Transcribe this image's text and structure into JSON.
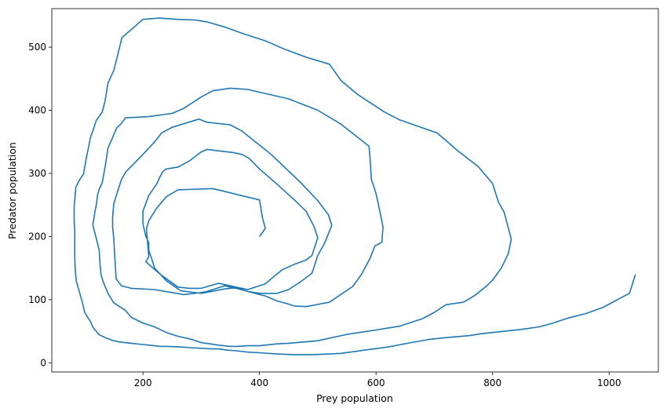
{
  "chart_data": {
    "type": "line",
    "title": "",
    "xlabel": "Prey population",
    "ylabel": "Predator population",
    "xlim": [
      43.6,
      1084.5
    ],
    "ylim": [
      -14.5,
      561.0
    ],
    "x_ticks": [
      200,
      400,
      600,
      800,
      1000
    ],
    "x_tick_labels": [
      "200",
      "400",
      "600",
      "800",
      "1000"
    ],
    "y_ticks": [
      0,
      100,
      200,
      300,
      400,
      500
    ],
    "y_tick_labels": [
      "0",
      "100",
      "200",
      "300",
      "400",
      "500"
    ],
    "grid": false,
    "legend": "none",
    "series": [
      {
        "color": "#1f77b4",
        "points": [
          [
            400,
            200
          ],
          [
            410,
            213
          ],
          [
            405,
            230
          ],
          [
            400,
            258
          ],
          [
            320,
            276
          ],
          [
            260,
            274
          ],
          [
            240,
            263
          ],
          [
            222,
            243
          ],
          [
            210,
            225
          ],
          [
            206,
            212
          ],
          [
            208,
            190
          ],
          [
            210,
            168
          ],
          [
            205,
            160
          ],
          [
            230,
            140
          ],
          [
            260,
            120
          ],
          [
            280,
            118
          ],
          [
            300,
            118
          ],
          [
            330,
            126
          ],
          [
            380,
            116
          ],
          [
            410,
            125
          ],
          [
            420,
            133
          ],
          [
            440,
            148
          ],
          [
            460,
            156
          ],
          [
            480,
            163
          ],
          [
            490,
            170
          ],
          [
            500,
            198
          ],
          [
            494,
            215
          ],
          [
            480,
            240
          ],
          [
            460,
            258
          ],
          [
            430,
            283
          ],
          [
            400,
            307
          ],
          [
            382,
            324
          ],
          [
            370,
            330
          ],
          [
            355,
            333
          ],
          [
            310,
            338
          ],
          [
            300,
            334
          ],
          [
            280,
            320
          ],
          [
            260,
            310
          ],
          [
            240,
            307
          ],
          [
            234,
            303
          ],
          [
            230,
            296
          ],
          [
            224,
            284
          ],
          [
            210,
            265
          ],
          [
            200,
            240
          ],
          [
            200,
            220
          ],
          [
            205,
            200
          ],
          [
            210,
            190
          ],
          [
            210,
            178
          ],
          [
            215,
            165
          ],
          [
            220,
            150
          ],
          [
            240,
            130
          ],
          [
            265,
            114
          ],
          [
            300,
            110
          ],
          [
            340,
            117
          ],
          [
            360,
            119
          ],
          [
            380,
            113
          ],
          [
            400,
            110
          ],
          [
            430,
            110
          ],
          [
            450,
            116
          ],
          [
            470,
            128
          ],
          [
            490,
            142
          ],
          [
            493,
            150
          ],
          [
            500,
            170
          ],
          [
            512,
            190
          ],
          [
            524,
            218
          ],
          [
            518,
            235
          ],
          [
            500,
            257
          ],
          [
            470,
            286
          ],
          [
            420,
            330
          ],
          [
            370,
            367
          ],
          [
            350,
            377
          ],
          [
            310,
            381
          ],
          [
            296,
            386
          ],
          [
            250,
            373
          ],
          [
            232,
            364
          ],
          [
            220,
            350
          ],
          [
            200,
            330
          ],
          [
            184,
            315
          ],
          [
            170,
            302
          ],
          [
            163,
            290
          ],
          [
            155,
            267
          ],
          [
            150,
            252
          ],
          [
            148,
            230
          ],
          [
            148,
            215
          ],
          [
            150,
            196
          ],
          [
            152,
            163
          ],
          [
            154,
            133
          ],
          [
            163,
            122
          ],
          [
            180,
            118
          ],
          [
            220,
            116
          ],
          [
            245,
            112
          ],
          [
            270,
            108
          ],
          [
            298,
            111
          ],
          [
            310,
            113
          ],
          [
            340,
            122
          ],
          [
            360,
            118
          ],
          [
            400,
            108
          ],
          [
            410,
            106
          ],
          [
            430,
            98
          ],
          [
            450,
            93
          ],
          [
            460,
            90
          ],
          [
            480,
            89
          ],
          [
            520,
            96
          ],
          [
            560,
            121
          ],
          [
            575,
            140
          ],
          [
            590,
            166
          ],
          [
            598,
            185
          ],
          [
            610,
            191
          ],
          [
            612,
            215
          ],
          [
            605,
            247
          ],
          [
            600,
            268
          ],
          [
            596,
            280
          ],
          [
            592,
            290
          ],
          [
            590,
            320
          ],
          [
            588,
            343
          ],
          [
            540,
            378
          ],
          [
            500,
            400
          ],
          [
            450,
            418
          ],
          [
            380,
            433
          ],
          [
            350,
            435
          ],
          [
            320,
            431
          ],
          [
            300,
            421
          ],
          [
            270,
            403
          ],
          [
            250,
            395
          ],
          [
            210,
            390
          ],
          [
            170,
            388
          ],
          [
            162,
            378
          ],
          [
            155,
            372
          ],
          [
            140,
            340
          ],
          [
            135,
            310
          ],
          [
            130,
            285
          ],
          [
            125,
            275
          ],
          [
            122,
            265
          ],
          [
            120,
            250
          ],
          [
            118,
            242
          ],
          [
            116,
            230
          ],
          [
            114,
            218
          ],
          [
            120,
            197
          ],
          [
            125,
            178
          ],
          [
            126,
            160
          ],
          [
            128,
            140
          ],
          [
            132,
            128
          ],
          [
            140,
            110
          ],
          [
            150,
            95
          ],
          [
            170,
            83
          ],
          [
            180,
            72
          ],
          [
            200,
            63
          ],
          [
            220,
            57
          ],
          [
            240,
            48
          ],
          [
            260,
            42
          ],
          [
            280,
            38
          ],
          [
            300,
            32
          ],
          [
            330,
            28
          ],
          [
            350,
            26
          ],
          [
            360,
            26
          ],
          [
            380,
            27
          ],
          [
            400,
            27
          ],
          [
            430,
            30
          ],
          [
            450,
            31
          ],
          [
            500,
            35
          ],
          [
            550,
            45
          ],
          [
            600,
            52
          ],
          [
            640,
            58
          ],
          [
            680,
            70
          ],
          [
            700,
            80
          ],
          [
            720,
            92
          ],
          [
            750,
            96
          ],
          [
            770,
            107
          ],
          [
            790,
            122
          ],
          [
            800,
            131
          ],
          [
            815,
            150
          ],
          [
            827,
            173
          ],
          [
            832,
            196
          ],
          [
            820,
            238
          ],
          [
            810,
            255
          ],
          [
            800,
            284
          ],
          [
            775,
            311
          ],
          [
            740,
            336
          ],
          [
            705,
            364
          ],
          [
            640,
            385
          ],
          [
            615,
            397
          ],
          [
            570,
            424
          ],
          [
            540,
            447
          ],
          [
            520,
            473
          ],
          [
            480,
            484
          ],
          [
            445,
            496
          ],
          [
            410,
            510
          ],
          [
            370,
            522
          ],
          [
            340,
            532
          ],
          [
            310,
            540
          ],
          [
            290,
            543
          ],
          [
            260,
            544
          ],
          [
            228,
            546
          ],
          [
            200,
            544
          ],
          [
            164,
            515
          ],
          [
            156,
            485
          ],
          [
            150,
            463
          ],
          [
            140,
            443
          ],
          [
            135,
            415
          ],
          [
            130,
            397
          ],
          [
            120,
            384
          ],
          [
            115,
            370
          ],
          [
            110,
            357
          ],
          [
            103,
            325
          ],
          [
            98,
            299
          ],
          [
            90,
            288
          ],
          [
            85,
            278
          ],
          [
            82,
            248
          ],
          [
            82,
            225
          ],
          [
            83,
            210
          ],
          [
            83,
            190
          ],
          [
            83,
            165
          ],
          [
            84,
            144
          ],
          [
            86,
            128
          ],
          [
            91,
            112
          ],
          [
            96,
            96
          ],
          [
            100,
            80
          ],
          [
            110,
            65
          ],
          [
            115,
            55
          ],
          [
            120,
            50
          ],
          [
            124,
            45
          ],
          [
            135,
            40
          ],
          [
            150,
            35
          ],
          [
            160,
            33
          ],
          [
            180,
            31
          ],
          [
            200,
            29
          ],
          [
            210,
            28
          ],
          [
            220,
            27
          ],
          [
            230,
            26
          ],
          [
            244,
            26
          ],
          [
            265,
            25
          ],
          [
            280,
            24
          ],
          [
            300,
            23
          ],
          [
            320,
            22
          ],
          [
            330,
            22
          ],
          [
            345,
            20
          ],
          [
            360,
            19
          ],
          [
            380,
            17
          ],
          [
            400,
            16
          ],
          [
            430,
            14
          ],
          [
            460,
            13
          ],
          [
            490,
            13
          ],
          [
            520,
            14
          ],
          [
            540,
            15
          ],
          [
            580,
            20
          ],
          [
            620,
            25
          ],
          [
            660,
            32
          ],
          [
            690,
            37
          ],
          [
            720,
            40
          ],
          [
            760,
            43
          ],
          [
            780,
            46
          ],
          [
            800,
            48
          ],
          [
            820,
            50
          ],
          [
            850,
            53
          ],
          [
            880,
            57
          ],
          [
            900,
            62
          ],
          [
            930,
            71
          ],
          [
            960,
            78
          ],
          [
            990,
            88
          ],
          [
            1010,
            98
          ],
          [
            1035,
            110
          ],
          [
            1045,
            140
          ]
        ]
      }
    ]
  }
}
